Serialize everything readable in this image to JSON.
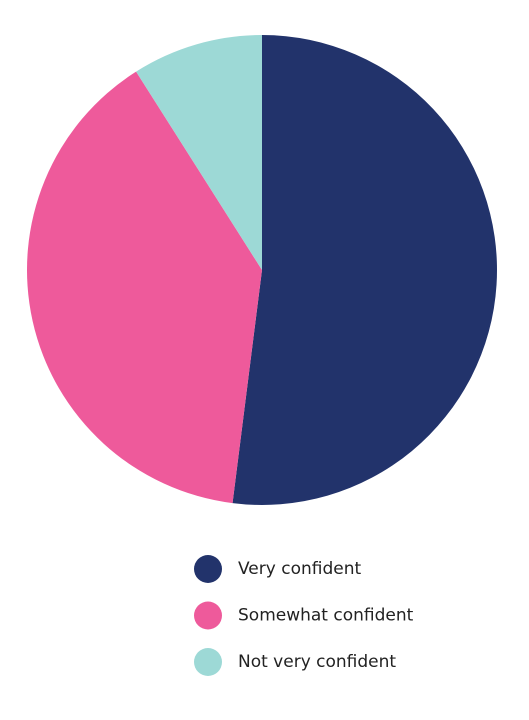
{
  "chart_data": {
    "type": "pie",
    "categories": [
      "Very confident",
      "Somewhat confident",
      "Not very confident"
    ],
    "values": [
      52,
      39,
      9
    ],
    "colors": [
      "#22336b",
      "#ee5a9b",
      "#9dd9d6"
    ]
  }
}
